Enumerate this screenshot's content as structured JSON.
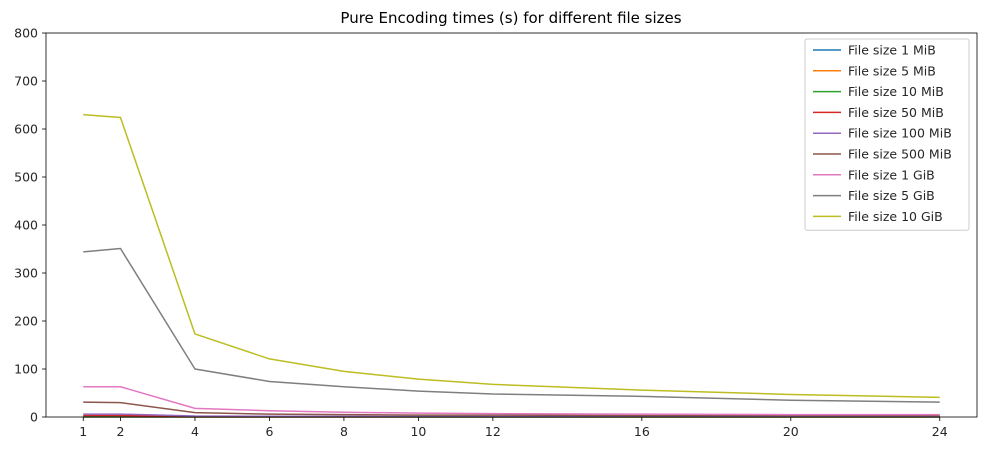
{
  "chart_data": {
    "type": "line",
    "title": "Pure Encoding times (s) for different file sizes",
    "xlabel": "",
    "ylabel": "",
    "x": [
      1,
      2,
      4,
      6,
      8,
      10,
      12,
      16,
      20,
      24
    ],
    "xticks": [
      1,
      2,
      4,
      6,
      8,
      10,
      12,
      16,
      20,
      24
    ],
    "xlim": [
      0,
      25
    ],
    "ylim": [
      0,
      800
    ],
    "yticks": [
      0,
      100,
      200,
      300,
      400,
      500,
      600,
      700,
      800
    ],
    "grid": false,
    "legend_position": "top-right",
    "series": [
      {
        "name": "File size 1 MiB",
        "color": "#1f77b4",
        "values": [
          0.1,
          0.1,
          0.05,
          0.05,
          0.04,
          0.04,
          0.03,
          0.03,
          0.03,
          0.03
        ]
      },
      {
        "name": "File size 5 MiB",
        "color": "#ff7f0e",
        "values": [
          0.3,
          0.3,
          0.1,
          0.1,
          0.1,
          0.1,
          0.1,
          0.1,
          0.1,
          0.1
        ]
      },
      {
        "name": "File size 10 MiB",
        "color": "#2ca02c",
        "values": [
          0.6,
          0.6,
          0.2,
          0.15,
          0.15,
          0.12,
          0.12,
          0.1,
          0.1,
          0.1
        ]
      },
      {
        "name": "File size 50 MiB",
        "color": "#d62728",
        "values": [
          3,
          3,
          1,
          0.8,
          0.6,
          0.5,
          0.5,
          0.4,
          0.4,
          0.4
        ]
      },
      {
        "name": "File size 100 MiB",
        "color": "#9467bd",
        "values": [
          6,
          6,
          2,
          1.5,
          1.2,
          1,
          0.9,
          0.8,
          0.7,
          0.7
        ]
      },
      {
        "name": "File size 500 MiB",
        "color": "#8c564b",
        "values": [
          31,
          30,
          9,
          6,
          5,
          4,
          4,
          3,
          3,
          3
        ]
      },
      {
        "name": "File size 1 GiB",
        "color": "#e377c2",
        "values": [
          63,
          63,
          18,
          13,
          10,
          8,
          7,
          6,
          5,
          5
        ]
      },
      {
        "name": "File size 5 GiB",
        "color": "#7f7f7f",
        "values": [
          344,
          351,
          100,
          74,
          63,
          54,
          48,
          43,
          35,
          31
        ]
      },
      {
        "name": "File size 10 GiB",
        "color": "#bcbd22",
        "values": [
          630,
          624,
          173,
          121,
          95,
          79,
          68,
          56,
          47,
          41
        ]
      }
    ]
  }
}
